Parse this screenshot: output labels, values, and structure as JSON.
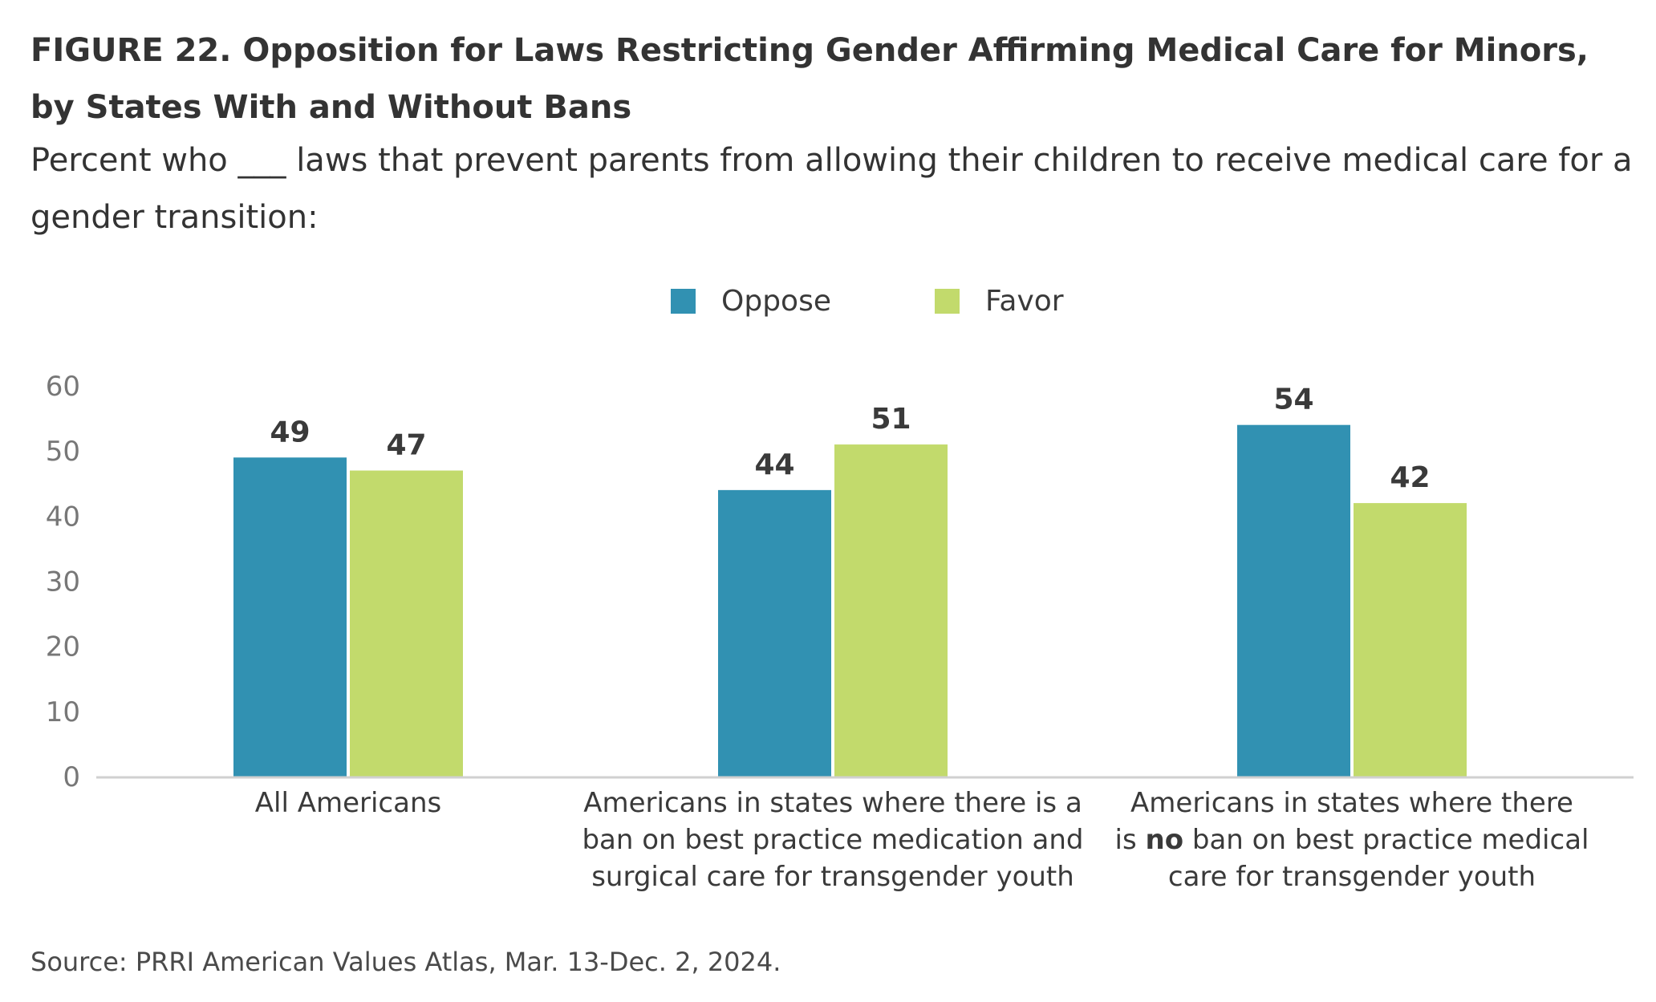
{
  "header": {
    "title": "FIGURE 22. Opposition for Laws Restricting Gender Affirming Medical Care for Minors, by States With and Without Bans",
    "subtitle": "Percent who ___ laws that prevent parents from allowing their children to receive medical care for a gender transition:"
  },
  "footer": {
    "source": "Source: PRRI American Values Atlas, Mar. 13-Dec. 2, 2024."
  },
  "chart_data": {
    "type": "bar",
    "title": "FIGURE 22. Opposition for Laws Restricting Gender Affirming Medical Care for Minors, by States With and Without Bans",
    "subtitle": "Percent who ___ laws that prevent parents from allowing their children to receive medical care for a gender transition:",
    "xlabel": "",
    "ylabel": "",
    "ylim": [
      0,
      60
    ],
    "yticks": [
      0,
      10,
      20,
      30,
      40,
      50,
      60
    ],
    "grid": false,
    "legend_position": "top-center",
    "categories": [
      "All Americans",
      "Americans in states where there is a ban on best practice medication and surgical care for transgender youth",
      "Americans in states where there is no ban on best practice medical care for transgender youth"
    ],
    "category_lines": [
      [
        {
          "t": "All Americans"
        }
      ],
      [
        {
          "t": "Americans in states where there is a"
        },
        {
          "t": "ban on best practice medication and"
        },
        {
          "t": "surgical care for transgender youth"
        }
      ],
      [
        {
          "t": "Americans in states where there"
        },
        {
          "t": "is ",
          "b": "no",
          "r": " ban on best practice medical"
        },
        {
          "t": "care for transgender youth"
        }
      ]
    ],
    "series": [
      {
        "name": "Oppose",
        "color": "#3191b2",
        "values": [
          49,
          44,
          54
        ]
      },
      {
        "name": "Favor",
        "color": "#c2da6c",
        "values": [
          47,
          51,
          42
        ]
      }
    ]
  }
}
